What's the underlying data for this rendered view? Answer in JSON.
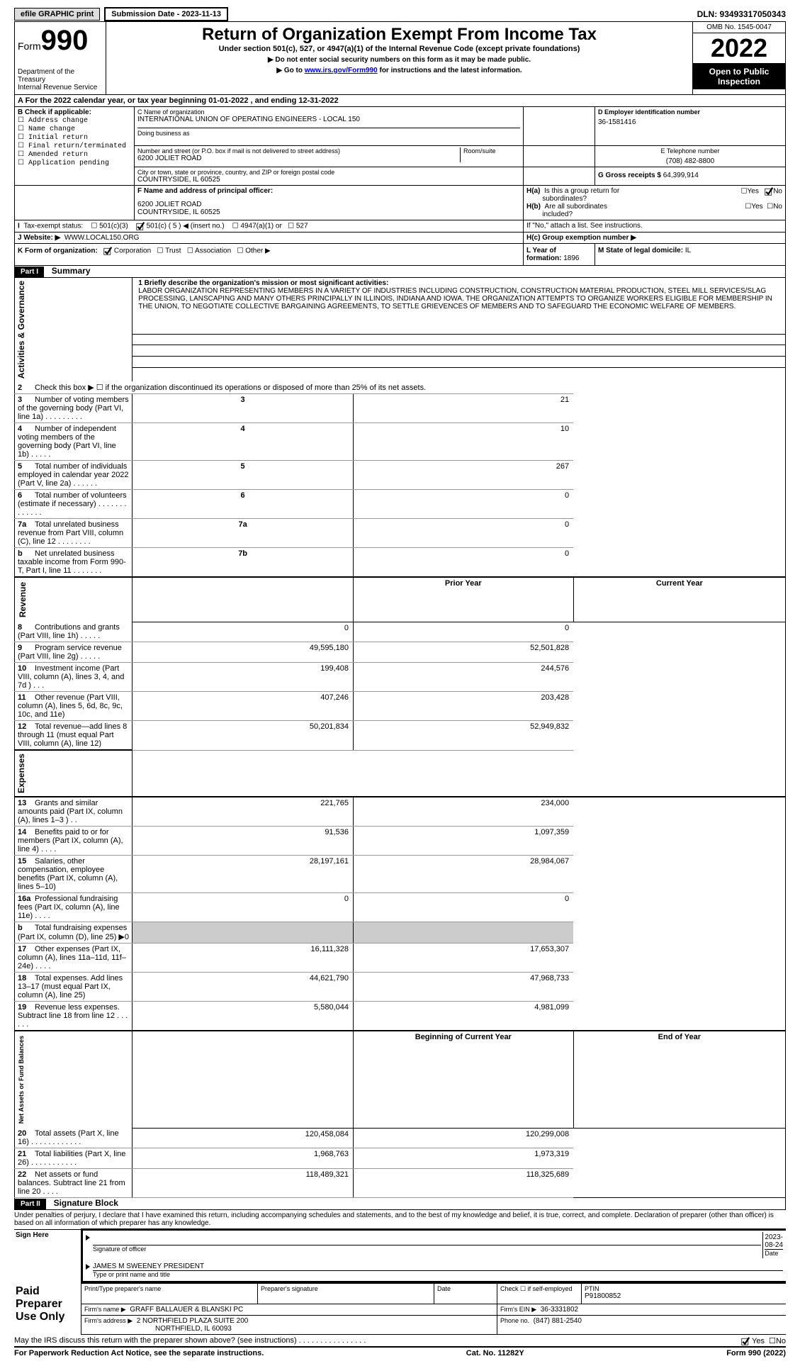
{
  "top": {
    "efile": "efile GRAPHIC print",
    "submission": "Submission Date - 2023-11-13",
    "dln": "DLN: 93493317050343"
  },
  "header": {
    "form_label": "Form",
    "form_number": "990",
    "title": "Return of Organization Exempt From Income Tax",
    "subtitle": "Under section 501(c), 527, or 4947(a)(1) of the Internal Revenue Code (except private foundations)",
    "warn1": "▶ Do not enter social security numbers on this form as it may be made public.",
    "warn2_prefix": "▶ Go to ",
    "warn2_link": "www.irs.gov/Form990",
    "warn2_suffix": " for instructions and the latest information.",
    "dept": "Department of the Treasury",
    "irs": "Internal Revenue Service",
    "omb": "OMB No. 1545-0047",
    "year": "2022",
    "open": "Open to Public Inspection"
  },
  "a_line": "A For the 2022 calendar year, or tax year beginning 01-01-2022    , and ending 12-31-2022",
  "b": {
    "label": "B Check if applicable:",
    "items": [
      "Address change",
      "Name change",
      "Initial return",
      "Final return/terminated",
      "Amended return",
      "Application pending"
    ]
  },
  "c": {
    "name_label": "C Name of organization",
    "name": "INTERNATIONAL UNION OF OPERATING ENGINEERS - LOCAL 150",
    "dba_label": "Doing business as",
    "street_label": "Number and street (or P.O. box if mail is not delivered to street address)",
    "room_label": "Room/suite",
    "street": "6200 JOLIET ROAD",
    "city_label": "City or town, state or province, country, and ZIP or foreign postal code",
    "city": "COUNTRYSIDE, IL  60525"
  },
  "d": {
    "label": "D Employer identification number",
    "value": "36-1581416"
  },
  "e": {
    "label": "E Telephone number",
    "value": "(708) 482-8800"
  },
  "g": {
    "label": "G Gross receipts $",
    "value": "64,399,914"
  },
  "f": {
    "label": "F Name and address of principal officer:",
    "addr1": "6200 JOLIET ROAD",
    "addr2": "COUNTRYSIDE, IL  60525"
  },
  "h": {
    "a": "H(a)  Is this a group return for subordinates?",
    "b": "H(b)  Are all subordinates included?",
    "b_note": "If \"No,\" attach a list. See instructions.",
    "c": "H(c)  Group exemption number ▶",
    "yes": "Yes",
    "no": "No"
  },
  "i": {
    "label": "I  Tax-exempt status:",
    "opt1": "501(c)(3)",
    "opt2": "501(c) ( 5 ) ◀ (insert no.)",
    "opt3": "4947(a)(1) or",
    "opt4": "527"
  },
  "j": {
    "label": "J  Website: ▶",
    "value": "WWW.LOCAL150.ORG"
  },
  "k": {
    "label": "K Form of organization:",
    "opts": [
      "Corporation",
      "Trust",
      "Association",
      "Other ▶"
    ]
  },
  "l": {
    "label": "L Year of formation:",
    "value": "1896"
  },
  "m": {
    "label": "M State of legal domicile:",
    "value": "IL"
  },
  "part1": {
    "tag": "Part I",
    "title": "Summary"
  },
  "mission": {
    "label": "1  Briefly describe the organization's mission or most significant activities:",
    "text": "LABOR ORGANIZATION REPRESENTING MEMBERS IN A VARIETY OF INDUSTRIES INCLUDING CONSTRUCTION, CONSTRUCTION MATERIAL PRODUCTION, STEEL MILL SERVICES/SLAG PROCESSING, LANSCAPING AND MANY OTHERS PRINCIPALLY IN ILLINOIS, INDIANA AND IOWA. THE ORGANIZATION ATTEMPTS TO ORGANIZE WORKERS ELIGIBLE FOR MEMBERSHIP IN THE UNION, TO NEGOTIATE COLLECTIVE BARGAINING AGREEMENTS, TO SETTLE GRIEVENCES OF MEMBERS AND TO SAFEGUARD THE ECONOMIC WELFARE OF MEMBERS."
  },
  "governance_label": "Activities & Governance",
  "revenue_label": "Revenue",
  "expenses_label": "Expenses",
  "netassets_label": "Net Assets or Fund Balances",
  "lines_gov": [
    {
      "n": "2",
      "t": "Check this box ▶ ☐  if the organization discontinued its operations or disposed of more than 25% of its net assets.",
      "num": "",
      "v": ""
    },
    {
      "n": "3",
      "t": "Number of voting members of the governing body (Part VI, line 1a)  .   .   .   .   .   .   .   .   .",
      "num": "3",
      "v": "21"
    },
    {
      "n": "4",
      "t": "Number of independent voting members of the governing body (Part VI, line 1b)  .   .   .   .   .",
      "num": "4",
      "v": "10"
    },
    {
      "n": "5",
      "t": "Total number of individuals employed in calendar year 2022 (Part V, line 2a)  .   .   .   .   .   .",
      "num": "5",
      "v": "267"
    },
    {
      "n": "6",
      "t": "Total number of volunteers (estimate if necessary)  .   .   .   .   .   .   .   .   .   .   .   .   .",
      "num": "6",
      "v": "0"
    },
    {
      "n": "7a",
      "t": "Total unrelated business revenue from Part VIII, column (C), line 12   .   .   .   .   .   .   .   .",
      "num": "7a",
      "v": "0"
    },
    {
      "n": "b",
      "t": "Net unrelated business taxable income from Form 990-T, Part I, line 11    .   .   .   .   .   .   .",
      "num": "7b",
      "v": "0"
    }
  ],
  "cols": {
    "prior": "Prior Year",
    "curr": "Current Year",
    "beg": "Beginning of Current Year",
    "end": "End of Year"
  },
  "lines_rev": [
    {
      "n": "8",
      "t": "Contributions and grants (Part VIII, line 1h)   .   .   .   .   .",
      "p": "0",
      "c": "0"
    },
    {
      "n": "9",
      "t": "Program service revenue (Part VIII, line 2g)   .   .   .   .   .",
      "p": "49,595,180",
      "c": "52,501,828"
    },
    {
      "n": "10",
      "t": "Investment income (Part VIII, column (A), lines 3, 4, and 7d )   .   .   .",
      "p": "199,408",
      "c": "244,576"
    },
    {
      "n": "11",
      "t": "Other revenue (Part VIII, column (A), lines 5, 6d, 8c, 9c, 10c, and 11e)",
      "p": "407,246",
      "c": "203,428"
    },
    {
      "n": "12",
      "t": "Total revenue—add lines 8 through 11 (must equal Part VIII, column (A), line 12)",
      "p": "50,201,834",
      "c": "52,949,832"
    }
  ],
  "lines_exp": [
    {
      "n": "13",
      "t": "Grants and similar amounts paid (Part IX, column (A), lines 1–3 )   .   .",
      "p": "221,765",
      "c": "234,000"
    },
    {
      "n": "14",
      "t": "Benefits paid to or for members (Part IX, column (A), line 4)   .   .   .   .",
      "p": "91,536",
      "c": "1,097,359"
    },
    {
      "n": "15",
      "t": "Salaries, other compensation, employee benefits (Part IX, column (A), lines 5–10)",
      "p": "28,197,161",
      "c": "28,984,067"
    },
    {
      "n": "16a",
      "t": "Professional fundraising fees (Part IX, column (A), line 11e)   .   .   .   .",
      "p": "0",
      "c": "0"
    },
    {
      "n": "b",
      "t": "Total fundraising expenses (Part IX, column (D), line 25) ▶0",
      "p": "grey",
      "c": "grey"
    },
    {
      "n": "17",
      "t": "Other expenses (Part IX, column (A), lines 11a–11d, 11f–24e)   .   .   .   .",
      "p": "16,111,328",
      "c": "17,653,307"
    },
    {
      "n": "18",
      "t": "Total expenses. Add lines 13–17 (must equal Part IX, column (A), line 25)",
      "p": "44,621,790",
      "c": "47,968,733"
    },
    {
      "n": "19",
      "t": "Revenue less expenses. Subtract line 18 from line 12   .   .   .   .   .   .",
      "p": "5,580,044",
      "c": "4,981,099"
    }
  ],
  "lines_na": [
    {
      "n": "20",
      "t": "Total assets (Part X, line 16)   .   .   .   .   .   .   .   .   .   .   .   .",
      "p": "120,458,084",
      "c": "120,299,008"
    },
    {
      "n": "21",
      "t": "Total liabilities (Part X, line 26)   .   .   .   .   .   .   .   .   .   .   .",
      "p": "1,968,763",
      "c": "1,973,319"
    },
    {
      "n": "22",
      "t": "Net assets or fund balances. Subtract line 21 from line 20    .   .   .   .",
      "p": "118,489,321",
      "c": "118,325,689"
    }
  ],
  "part2": {
    "tag": "Part II",
    "title": "Signature Block",
    "perjury": "Under penalties of perjury, I declare that I have examined this return, including accompanying schedules and statements, and to the best of my knowledge and belief, it is true, correct, and complete. Declaration of preparer (other than officer) is based on all information of which preparer has any knowledge."
  },
  "sign": {
    "here": "Sign Here",
    "sig_officer": "Signature of officer",
    "date": "Date",
    "date_val": "2023-08-24",
    "name": "JAMES M SWEENEY PRESIDENT",
    "name_label": "Type or print name and title"
  },
  "paid": {
    "label": "Paid Preparer Use Only",
    "col1": "Print/Type preparer's name",
    "col2": "Preparer's signature",
    "col3": "Date",
    "col4": "Check ☐ if self-employed",
    "ptin_label": "PTIN",
    "ptin": "P91800852",
    "firm_name_label": "Firm's name    ▶",
    "firm_name": "GRAFF BALLAUER & BLANSKI PC",
    "firm_ein_label": "Firm's EIN ▶",
    "firm_ein": "36-3331802",
    "firm_addr_label": "Firm's address ▶",
    "firm_addr1": "2 NORTHFIELD PLAZA SUITE 200",
    "firm_addr2": "NORTHFIELD, IL  60093",
    "phone_label": "Phone no.",
    "phone": "(847) 881-2540"
  },
  "discuss": "May the IRS discuss this return with the preparer shown above? (see instructions)   .   .   .   .   .   .   .   .   .   .   .   .   .   .   .   .",
  "footer": {
    "pra": "For Paperwork Reduction Act Notice, see the separate instructions.",
    "cat": "Cat. No. 11282Y",
    "form": "Form 990 (2022)"
  }
}
